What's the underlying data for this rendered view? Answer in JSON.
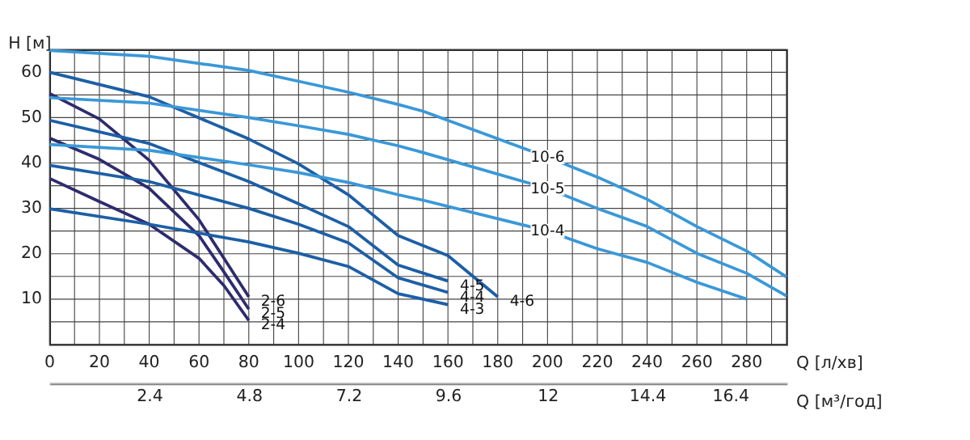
{
  "chart_data": {
    "type": "line",
    "xlabel": "Q [л/хв]",
    "ylabel": "H [м]",
    "x2label": "Q [м³/год]",
    "xlim": [
      0,
      296
    ],
    "ylim": [
      0,
      65
    ],
    "xticks": [
      0,
      {
        "value": 10,
        "label": null
      },
      20,
      {
        "value": 30,
        "label": null
      },
      40,
      {
        "value": 50,
        "label": null
      },
      60,
      {
        "value": 70,
        "label": null
      },
      80,
      {
        "value": 90,
        "label": null
      },
      100,
      {
        "value": 110,
        "label": null
      },
      120,
      {
        "value": 130,
        "label": null
      },
      140,
      {
        "value": 150,
        "label": null
      },
      160,
      {
        "value": 170,
        "label": null
      },
      180,
      {
        "value": 190,
        "label": null
      },
      200,
      {
        "value": 210,
        "label": null
      },
      220,
      {
        "value": 230,
        "label": null
      },
      240,
      {
        "value": 250,
        "label": null
      },
      260,
      {
        "value": 270,
        "label": null
      },
      280,
      {
        "value": 290,
        "label": null
      }
    ],
    "yticks": [
      {
        "value": 0,
        "label": null
      },
      {
        "value": 5,
        "label": null
      },
      10,
      {
        "value": 15,
        "label": null
      },
      20,
      {
        "value": 25,
        "label": null
      },
      30,
      {
        "value": 35,
        "label": null
      },
      40,
      {
        "value": 45,
        "label": null
      },
      50,
      {
        "value": 55,
        "label": null
      },
      60,
      {
        "value": 65,
        "label": null
      }
    ],
    "x2lim": [
      0,
      17.76
    ],
    "x2ticks": [
      2.4,
      4.8,
      7.2,
      9.6,
      12,
      14.4,
      16.4
    ],
    "grid": true,
    "legend": false,
    "marker": "none",
    "line_style": "solid",
    "series": [
      {
        "name": "2-6",
        "color": "#2e2c6e",
        "x": [
          0,
          20,
          40,
          60,
          70,
          80
        ],
        "values": [
          55.3,
          49.7,
          40.6,
          27.5,
          19,
          10.5
        ]
      },
      {
        "name": "2-5",
        "color": "#2e2c6e",
        "x": [
          0,
          20,
          40,
          60,
          70,
          80
        ],
        "values": [
          45.5,
          40.8,
          34.4,
          24,
          16,
          7.8
        ]
      },
      {
        "name": "2-4",
        "color": "#2e2c6e",
        "x": [
          0,
          20,
          40,
          60,
          70,
          80
        ],
        "values": [
          36.6,
          31.5,
          26.5,
          19,
          13,
          5.3
        ]
      },
      {
        "name": "4-6",
        "color": "#1c5fa6",
        "x": [
          0,
          40,
          80,
          100,
          120,
          140,
          160,
          180
        ],
        "values": [
          60,
          54.6,
          45.3,
          39.8,
          33,
          24,
          19.6,
          10.5
        ]
      },
      {
        "name": "4-5",
        "color": "#1c5fa6",
        "x": [
          0,
          40,
          80,
          100,
          120,
          140,
          160
        ],
        "values": [
          49.4,
          44.3,
          35.9,
          31,
          26,
          17.5,
          14
        ]
      },
      {
        "name": "4-4",
        "color": "#1c5fa6",
        "x": [
          0,
          40,
          80,
          100,
          120,
          140,
          160
        ],
        "values": [
          39.5,
          35.9,
          30,
          26.5,
          22.4,
          14.7,
          11.5
        ]
      },
      {
        "name": "4-3",
        "color": "#1c5fa6",
        "x": [
          0,
          40,
          80,
          100,
          120,
          140,
          160
        ],
        "values": [
          29.9,
          26.5,
          22.6,
          20.1,
          17.2,
          11.2,
          8.8
        ]
      },
      {
        "name": "10-6",
        "color": "#3a98d8",
        "x": [
          0,
          40,
          80,
          100,
          120,
          140,
          150,
          200,
          220,
          240,
          260,
          280,
          296
        ],
        "values": [
          64.8,
          63.5,
          60.4,
          58,
          55.6,
          52.9,
          51.4,
          41.3,
          36.9,
          32,
          26,
          20.6,
          14.9
        ]
      },
      {
        "name": "10-5",
        "color": "#3a98d8",
        "x": [
          0,
          40,
          80,
          100,
          120,
          140,
          150,
          200,
          220,
          240,
          260,
          280,
          296
        ],
        "values": [
          54.4,
          53.2,
          50,
          48.2,
          46.3,
          43.8,
          42.3,
          34.4,
          30,
          26,
          20.1,
          15.7,
          10.7
        ]
      },
      {
        "name": "10-4",
        "color": "#3a98d8",
        "x": [
          0,
          40,
          80,
          100,
          120,
          140,
          150,
          200,
          220,
          240,
          260,
          280
        ],
        "values": [
          44.1,
          42.8,
          39.6,
          37.9,
          35.7,
          33,
          31.8,
          25,
          21.1,
          18.1,
          13.7,
          10
        ]
      }
    ]
  }
}
